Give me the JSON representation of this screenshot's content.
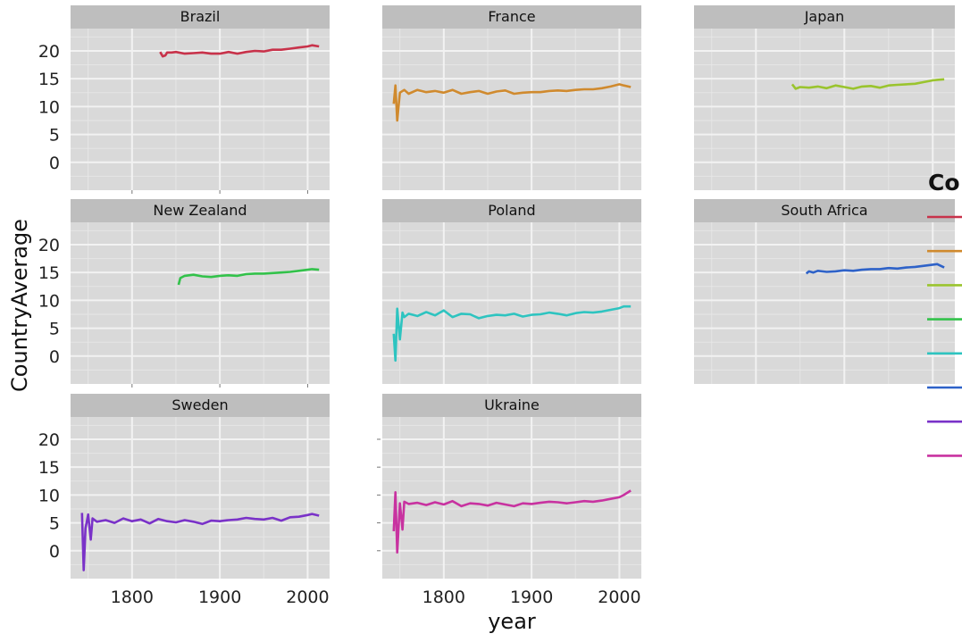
{
  "chart_data": {
    "type": "line",
    "layout": "faceted 3x3 small multiples, one panel per country",
    "xlabel": "year",
    "ylabel": "CountryAverage",
    "legend_title": "Co",
    "legend_position": "right (clipped)",
    "x_ticks": [
      1800,
      1900,
      2000
    ],
    "y_ticks": [
      0,
      5,
      10,
      15,
      20
    ],
    "xlim": [
      1730,
      2025
    ],
    "ylim": [
      -5,
      24
    ],
    "grid": true,
    "background": "#d9d9d9",
    "strip_background": "#bebebe",
    "series": [
      {
        "name": "Brazil",
        "color": "#c8324a",
        "x": [
          1832,
          1835,
          1838,
          1840,
          1845,
          1850,
          1860,
          1870,
          1880,
          1890,
          1900,
          1910,
          1920,
          1930,
          1940,
          1950,
          1960,
          1970,
          1980,
          1990,
          2000,
          2005,
          2013
        ],
        "y": [
          19.8,
          19.0,
          19.2,
          19.7,
          19.7,
          19.8,
          19.5,
          19.6,
          19.7,
          19.5,
          19.5,
          19.8,
          19.5,
          19.8,
          20.0,
          19.9,
          20.2,
          20.2,
          20.4,
          20.6,
          20.8,
          21.0,
          20.8
        ]
      },
      {
        "name": "France",
        "color": "#d08a2e",
        "x": [
          1743,
          1745,
          1747,
          1750,
          1755,
          1760,
          1770,
          1780,
          1790,
          1800,
          1810,
          1820,
          1830,
          1840,
          1850,
          1860,
          1870,
          1880,
          1890,
          1900,
          1910,
          1920,
          1930,
          1940,
          1950,
          1960,
          1970,
          1980,
          1990,
          2000,
          2005,
          2013
        ],
        "y": [
          10.5,
          13.8,
          7.5,
          12.5,
          13.0,
          12.3,
          13.0,
          12.6,
          12.8,
          12.5,
          13.0,
          12.3,
          12.6,
          12.8,
          12.3,
          12.7,
          12.9,
          12.3,
          12.5,
          12.6,
          12.6,
          12.8,
          12.9,
          12.8,
          13.0,
          13.1,
          13.1,
          13.3,
          13.6,
          14.0,
          13.8,
          13.5
        ]
      },
      {
        "name": "Japan",
        "color": "#9ac42e",
        "x": [
          1841,
          1845,
          1850,
          1860,
          1870,
          1880,
          1890,
          1900,
          1910,
          1920,
          1930,
          1940,
          1950,
          1960,
          1970,
          1980,
          1990,
          2000,
          2005,
          2013
        ],
        "y": [
          14.0,
          13.2,
          13.5,
          13.4,
          13.6,
          13.3,
          13.8,
          13.5,
          13.2,
          13.6,
          13.7,
          13.4,
          13.8,
          13.9,
          14.0,
          14.1,
          14.4,
          14.7,
          14.8,
          14.9
        ]
      },
      {
        "name": "New Zealand",
        "color": "#32c24a",
        "x": [
          1853,
          1855,
          1860,
          1870,
          1880,
          1890,
          1900,
          1910,
          1920,
          1930,
          1940,
          1950,
          1960,
          1970,
          1980,
          1990,
          2000,
          2005,
          2013
        ],
        "y": [
          12.8,
          14.0,
          14.4,
          14.6,
          14.3,
          14.2,
          14.4,
          14.5,
          14.4,
          14.7,
          14.8,
          14.8,
          14.9,
          15.0,
          15.1,
          15.3,
          15.5,
          15.6,
          15.5
        ]
      },
      {
        "name": "Poland",
        "color": "#2ec4c0",
        "x": [
          1743,
          1745,
          1747,
          1750,
          1753,
          1755,
          1760,
          1770,
          1780,
          1790,
          1800,
          1810,
          1820,
          1830,
          1840,
          1850,
          1860,
          1870,
          1880,
          1890,
          1900,
          1910,
          1920,
          1930,
          1940,
          1950,
          1960,
          1970,
          1980,
          1990,
          2000,
          2005,
          2013
        ],
        "y": [
          4.0,
          -0.8,
          8.5,
          3.0,
          7.8,
          7.0,
          7.6,
          7.2,
          7.9,
          7.3,
          8.2,
          7.0,
          7.6,
          7.5,
          6.8,
          7.2,
          7.4,
          7.3,
          7.6,
          7.1,
          7.4,
          7.5,
          7.8,
          7.6,
          7.3,
          7.7,
          7.9,
          7.8,
          8.0,
          8.3,
          8.6,
          8.9,
          8.9
        ]
      },
      {
        "name": "South Africa",
        "color": "#2e62c8",
        "x": [
          1857,
          1860,
          1865,
          1870,
          1880,
          1890,
          1900,
          1910,
          1920,
          1930,
          1940,
          1950,
          1960,
          1970,
          1980,
          1990,
          2000,
          2005,
          2013
        ],
        "y": [
          14.8,
          15.2,
          15.0,
          15.3,
          15.1,
          15.2,
          15.4,
          15.3,
          15.5,
          15.6,
          15.6,
          15.8,
          15.7,
          15.9,
          16.0,
          16.2,
          16.4,
          16.5,
          15.9
        ]
      },
      {
        "name": "Sweden",
        "color": "#7a32c8",
        "x": [
          1743,
          1745,
          1747,
          1750,
          1753,
          1755,
          1760,
          1770,
          1780,
          1790,
          1800,
          1810,
          1820,
          1830,
          1840,
          1850,
          1860,
          1870,
          1880,
          1890,
          1900,
          1910,
          1920,
          1930,
          1940,
          1950,
          1960,
          1970,
          1980,
          1990,
          2000,
          2005,
          2013
        ],
        "y": [
          6.8,
          -3.5,
          4.0,
          6.5,
          2.0,
          5.8,
          5.2,
          5.5,
          5.0,
          5.8,
          5.3,
          5.6,
          4.9,
          5.7,
          5.3,
          5.1,
          5.5,
          5.2,
          4.8,
          5.4,
          5.3,
          5.5,
          5.6,
          5.9,
          5.7,
          5.6,
          5.9,
          5.4,
          6.0,
          6.1,
          6.4,
          6.6,
          6.3
        ]
      },
      {
        "name": "Ukraine",
        "color": "#c832a0",
        "x": [
          1743,
          1745,
          1747,
          1750,
          1753,
          1755,
          1760,
          1770,
          1780,
          1790,
          1800,
          1810,
          1820,
          1830,
          1840,
          1850,
          1860,
          1870,
          1880,
          1890,
          1900,
          1910,
          1920,
          1930,
          1940,
          1950,
          1960,
          1970,
          1980,
          1990,
          2000,
          2005,
          2013
        ],
        "y": [
          3.5,
          10.5,
          -0.3,
          8.5,
          3.8,
          8.8,
          8.4,
          8.6,
          8.2,
          8.7,
          8.3,
          8.9,
          8.0,
          8.5,
          8.4,
          8.1,
          8.6,
          8.3,
          8.0,
          8.5,
          8.4,
          8.6,
          8.8,
          8.7,
          8.5,
          8.7,
          8.9,
          8.8,
          9.0,
          9.3,
          9.6,
          10.0,
          10.8
        ]
      }
    ]
  }
}
